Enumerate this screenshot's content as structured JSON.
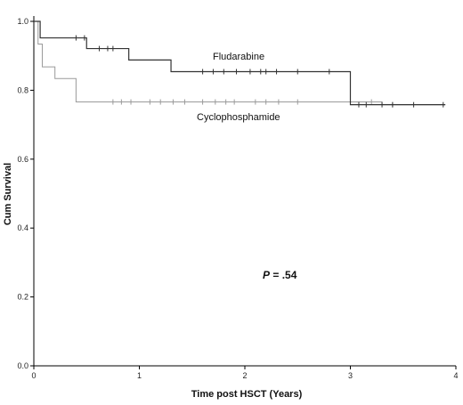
{
  "chart_data": {
    "type": "line",
    "subtype": "kaplan-meier",
    "xlabel": "Time post HSCT (Years)",
    "ylabel": "Cum Survival",
    "xlim": [
      0,
      4
    ],
    "ylim": [
      0,
      1.0
    ],
    "x_ticks": [
      0,
      1,
      2,
      3,
      4
    ],
    "y_ticks": [
      0.0,
      0.2,
      0.4,
      0.6,
      0.8,
      1.0
    ],
    "x_tick_labels": [
      "0",
      "1",
      "2",
      "3",
      "4"
    ],
    "y_tick_labels": [
      "0.0",
      "0.2",
      "0.4",
      "0.6",
      "0.8",
      "1.0"
    ],
    "grid": false,
    "legend": "none",
    "annotation": {
      "p_italic": "P",
      "p_rest": " = .54"
    },
    "series": [
      {
        "name": "Fludarabine",
        "color": "#333333",
        "steps": [
          [
            0,
            1.0
          ],
          [
            0.06,
            0.952
          ],
          [
            0.5,
            0.921
          ],
          [
            0.9,
            0.888
          ],
          [
            1.3,
            0.854
          ],
          [
            3.0,
            0.758
          ],
          [
            3.9,
            0.758
          ]
        ],
        "censored": [
          0.4,
          0.48,
          0.62,
          0.7,
          0.75,
          1.6,
          1.7,
          1.8,
          1.92,
          2.05,
          2.15,
          2.2,
          2.3,
          2.5,
          2.8,
          3.08,
          3.15,
          3.3,
          3.4,
          3.6,
          3.88
        ]
      },
      {
        "name": "Cyclophosphamide",
        "color": "#9a9a9a",
        "steps": [
          [
            0,
            1.0
          ],
          [
            0.04,
            0.934
          ],
          [
            0.08,
            0.868
          ],
          [
            0.2,
            0.834
          ],
          [
            0.4,
            0.766
          ],
          [
            3.0,
            0.766
          ],
          [
            3.3,
            0.758
          ],
          [
            3.9,
            0.758
          ]
        ],
        "censored": [
          0.75,
          0.83,
          0.92,
          1.1,
          1.2,
          1.32,
          1.43,
          1.6,
          1.72,
          1.82,
          1.9,
          2.1,
          2.2,
          2.32,
          2.5,
          3.2,
          3.4
        ]
      }
    ]
  }
}
